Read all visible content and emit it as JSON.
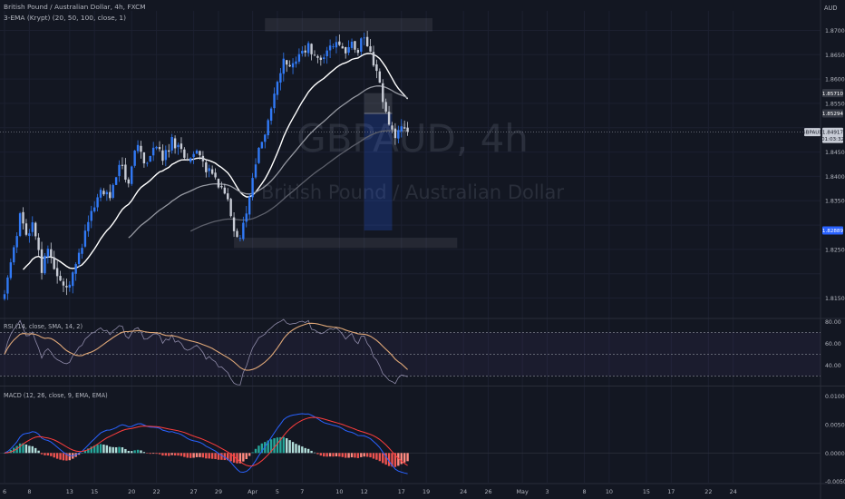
{
  "header": {
    "symbol_line": "British Pound / Australian Dollar, 4h, FXCM",
    "indicator_line": "3-EMA (Krypt) (20, 50, 100, close, 1)",
    "currency": "AUD"
  },
  "watermark": {
    "ticker": "GBPAUD, 4h",
    "name": "British Pound / Australian Dollar"
  },
  "colors": {
    "background": "#131722",
    "grid": "#1c2030",
    "text": "#b2b5be",
    "candle_up": "#3179f5",
    "candle_down": "#c8ccd6",
    "ema_fast": "#ffffff",
    "ema_mid": "#9598a1",
    "ema_slow": "#5d606b",
    "rsi": "#8e8aa8",
    "rsi_sma": "#e0a878",
    "macd": "#2962ff",
    "macd_signal": "#ff3d3d",
    "hist_pos": "#b2dfdb",
    "hist_pos_strong": "#26a69a",
    "hist_neg": "#ff8a80",
    "hist_neg_strong": "#ef5350"
  },
  "price_axis": {
    "ticks": [
      "1.87000",
      "1.86500",
      "1.86000",
      "1.85500",
      "1.84500",
      "1.84000",
      "1.83500",
      "1.82500",
      "1.81500"
    ],
    "tags": [
      {
        "label": "1.85710",
        "value": 1.8571,
        "style": "dark"
      },
      {
        "label": "1.85294",
        "value": 1.85294,
        "style": "dark"
      },
      {
        "label": "GBPAUD",
        "value": 1.8491,
        "style": "symbol"
      },
      {
        "label": "1.84917",
        "value": 1.84917,
        "style": "light"
      },
      {
        "label": "01:03:32",
        "value": 1.8477,
        "style": "light"
      },
      {
        "label": "1.82889",
        "value": 1.82889,
        "style": "blue"
      }
    ]
  },
  "rsi_panel": {
    "title": "RSI (14, close, SMA, 14, 2)",
    "ticks": [
      "80.00",
      "60.00",
      "40.00"
    ]
  },
  "macd_panel": {
    "title": "MACD (12, 26, close, 9, EMA, EMA)",
    "ticks": [
      "0.01000",
      "0.00500",
      "0.00000",
      "-0.00500"
    ]
  },
  "time_axis": {
    "labels": [
      {
        "text": "6",
        "i": 0
      },
      {
        "text": "8",
        "i": 8
      },
      {
        "text": "13",
        "i": 21
      },
      {
        "text": "15",
        "i": 29
      },
      {
        "text": "20",
        "i": 41
      },
      {
        "text": "22",
        "i": 49
      },
      {
        "text": "27",
        "i": 61
      },
      {
        "text": "29",
        "i": 69
      },
      {
        "text": "Apr",
        "i": 80
      },
      {
        "text": "5",
        "i": 88
      },
      {
        "text": "7",
        "i": 96
      },
      {
        "text": "10",
        "i": 108
      },
      {
        "text": "12",
        "i": 116
      },
      {
        "text": "17",
        "i": 128
      },
      {
        "text": "19",
        "i": 136
      },
      {
        "text": "24",
        "i": 148
      },
      {
        "text": "26",
        "i": 156
      },
      {
        "text": "May",
        "i": 167
      },
      {
        "text": "3",
        "i": 175
      },
      {
        "text": "8",
        "i": 187
      },
      {
        "text": "10",
        "i": 195
      },
      {
        "text": "15",
        "i": 207
      },
      {
        "text": "17",
        "i": 215
      },
      {
        "text": "22",
        "i": 227
      },
      {
        "text": "24",
        "i": 235
      }
    ]
  },
  "chart_data": {
    "type": "candlestick",
    "timeframe": "4h",
    "ylim": [
      1.811,
      1.874
    ],
    "rsi_ylim": [
      22,
      82
    ],
    "rsi_levels": [
      70,
      50,
      30
    ],
    "macd_ylim": [
      -0.0052,
      0.0115
    ],
    "close_waypoints": [
      [
        0,
        1.816
      ],
      [
        3,
        1.8245
      ],
      [
        5,
        1.833
      ],
      [
        7,
        1.827
      ],
      [
        9,
        1.8295
      ],
      [
        12,
        1.821
      ],
      [
        14,
        1.8245
      ],
      [
        17,
        1.8195
      ],
      [
        19,
        1.817
      ],
      [
        22,
        1.8195
      ],
      [
        25,
        1.826
      ],
      [
        28,
        1.833
      ],
      [
        31,
        1.838
      ],
      [
        34,
        1.836
      ],
      [
        37,
        1.842
      ],
      [
        40,
        1.8395
      ],
      [
        43,
        1.847
      ],
      [
        45,
        1.8425
      ],
      [
        48,
        1.846
      ],
      [
        51,
        1.844
      ],
      [
        54,
        1.847
      ],
      [
        57,
        1.8455
      ],
      [
        60,
        1.843
      ],
      [
        62,
        1.845
      ],
      [
        64,
        1.8425
      ],
      [
        66,
        1.841
      ],
      [
        68,
        1.8395
      ],
      [
        70,
        1.838
      ],
      [
        72,
        1.836
      ],
      [
        74,
        1.8295
      ],
      [
        76,
        1.827
      ],
      [
        78,
        1.833
      ],
      [
        80,
        1.84
      ],
      [
        82,
        1.845
      ],
      [
        85,
        1.852
      ],
      [
        88,
        1.86
      ],
      [
        90,
        1.864
      ],
      [
        92,
        1.8615
      ],
      [
        95,
        1.865
      ],
      [
        98,
        1.8665
      ],
      [
        101,
        1.864
      ],
      [
        104,
        1.866
      ],
      [
        107,
        1.867
      ],
      [
        110,
        1.866
      ],
      [
        112,
        1.868
      ],
      [
        114,
        1.866
      ],
      [
        116,
        1.869
      ],
      [
        118,
        1.865
      ],
      [
        120,
        1.862
      ],
      [
        122,
        1.856
      ],
      [
        124,
        1.851
      ],
      [
        126,
        1.848
      ],
      [
        128,
        1.85
      ],
      [
        130,
        1.8491
      ]
    ]
  },
  "drawings": {
    "zones": [
      {
        "i0": 84,
        "i1": 138,
        "top": 1.8725,
        "bottom": 1.8698
      },
      {
        "i0": 74,
        "i1": 146,
        "top": 1.8274,
        "bottom": 1.8253
      }
    ],
    "position_tool": {
      "i0": 116,
      "i1": 125,
      "entry": 1.85294,
      "stop": 1.8571,
      "target": 1.82889
    }
  }
}
